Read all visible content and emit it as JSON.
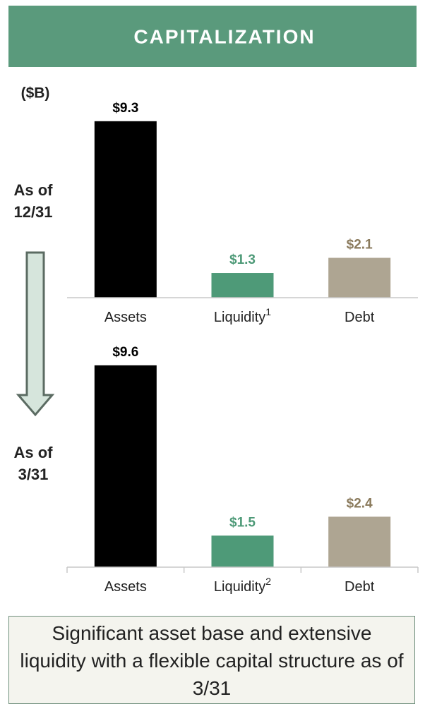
{
  "header": {
    "title": "CAPITALIZATION"
  },
  "unit": "($B)",
  "chart_data": [
    {
      "type": "bar",
      "title": "As of 12/31",
      "categories": [
        "Assets",
        "Liquidity",
        "Debt"
      ],
      "footnotes": [
        null,
        "1",
        null
      ],
      "values": [
        9.3,
        1.3,
        2.1
      ],
      "value_labels": [
        "$9.3",
        "$1.3",
        "$2.1"
      ],
      "colors": [
        "#000000",
        "#4e9a78",
        "#aea592"
      ],
      "label_colors": [
        "#000000",
        "#4e9a78",
        "#8a7a5c"
      ],
      "ylim": [
        0,
        10
      ]
    },
    {
      "type": "bar",
      "title": "As of 3/31",
      "categories": [
        "Assets",
        "Liquidity",
        "Debt"
      ],
      "footnotes": [
        null,
        "2",
        null
      ],
      "values": [
        9.6,
        1.5,
        2.4
      ],
      "value_labels": [
        "$9.6",
        "$1.5",
        "$2.4"
      ],
      "colors": [
        "#000000",
        "#4e9a78",
        "#aea592"
      ],
      "label_colors": [
        "#000000",
        "#4e9a78",
        "#8a7a5c"
      ],
      "ylim": [
        0,
        10
      ]
    }
  ],
  "footer": {
    "text": "Significant asset base and extensive liquidity with a flexible capital structure as of 3/31"
  }
}
